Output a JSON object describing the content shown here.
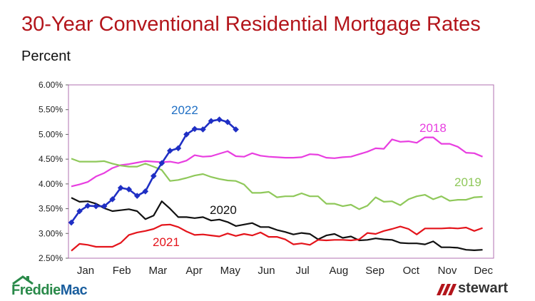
{
  "header": {
    "title": "30-Year Conventional Residential Mortgage Rates",
    "subtitle": "Percent"
  },
  "logos": {
    "left": "FreddieMac",
    "left_part1": "Freddie",
    "left_part2": "Mac",
    "right": "stewart"
  },
  "colors": {
    "title": "#b3151b",
    "y2018": "#e83ee0",
    "y2019": "#8fc85a",
    "y2020": "#111111",
    "y2021": "#e4141b",
    "y2022": "#1f2fc4",
    "label2022": "#1f6fc4",
    "frame": "#b070b0"
  },
  "chart_data": {
    "type": "line",
    "title": "30-Year Conventional Residential Mortgage Rates",
    "ylabel": "Percent",
    "ylim": [
      2.5,
      6.0
    ],
    "yticks": [
      "2.50%",
      "3.00%",
      "3.50%",
      "4.00%",
      "4.50%",
      "5.00%",
      "5.50%",
      "6.00%"
    ],
    "xlim": [
      0,
      51
    ],
    "xticks": [
      "Jan",
      "Feb",
      "Mar",
      "Apr",
      "May",
      "Jun",
      "Jul",
      "Aug",
      "Sep",
      "Oct",
      "Nov",
      "Dec"
    ],
    "legend": "inline labels",
    "series": [
      {
        "name": "2018",
        "color": "#e83ee0",
        "markers": false,
        "values": [
          3.95,
          3.99,
          4.04,
          4.15,
          4.22,
          4.32,
          4.38,
          4.4,
          4.43,
          4.46,
          4.45,
          4.44,
          4.45,
          4.42,
          4.47,
          4.58,
          4.55,
          4.56,
          4.61,
          4.66,
          4.56,
          4.55,
          4.62,
          4.57,
          4.55,
          4.54,
          4.53,
          4.53,
          4.54,
          4.6,
          4.59,
          4.53,
          4.52,
          4.54,
          4.55,
          4.6,
          4.65,
          4.72,
          4.71,
          4.9,
          4.85,
          4.86,
          4.83,
          4.94,
          4.94,
          4.81,
          4.81,
          4.75,
          4.63,
          4.62,
          4.55
        ]
      },
      {
        "name": "2019",
        "color": "#8fc85a",
        "markers": false,
        "values": [
          4.51,
          4.45,
          4.45,
          4.45,
          4.46,
          4.41,
          4.37,
          4.35,
          4.35,
          4.41,
          4.35,
          4.28,
          4.06,
          4.08,
          4.12,
          4.17,
          4.2,
          4.14,
          4.1,
          4.07,
          4.06,
          3.99,
          3.82,
          3.82,
          3.84,
          3.73,
          3.75,
          3.75,
          3.81,
          3.75,
          3.75,
          3.6,
          3.6,
          3.55,
          3.58,
          3.49,
          3.56,
          3.73,
          3.64,
          3.65,
          3.57,
          3.69,
          3.75,
          3.78,
          3.69,
          3.75,
          3.66,
          3.68,
          3.68,
          3.73,
          3.74
        ]
      },
      {
        "name": "2020",
        "color": "#111111",
        "markers": false,
        "values": [
          3.72,
          3.64,
          3.65,
          3.6,
          3.51,
          3.45,
          3.47,
          3.49,
          3.45,
          3.29,
          3.36,
          3.65,
          3.5,
          3.33,
          3.33,
          3.31,
          3.33,
          3.26,
          3.28,
          3.23,
          3.15,
          3.18,
          3.21,
          3.13,
          3.13,
          3.07,
          3.03,
          2.98,
          3.01,
          2.99,
          2.88,
          2.96,
          2.99,
          2.91,
          2.94,
          2.86,
          2.87,
          2.9,
          2.88,
          2.87,
          2.81,
          2.8,
          2.8,
          2.78,
          2.84,
          2.72,
          2.72,
          2.71,
          2.67,
          2.66,
          2.67
        ]
      },
      {
        "name": "2021",
        "color": "#e4141b",
        "markers": false,
        "values": [
          2.65,
          2.79,
          2.77,
          2.73,
          2.73,
          2.73,
          2.81,
          2.97,
          3.02,
          3.05,
          3.09,
          3.17,
          3.18,
          3.13,
          3.04,
          2.97,
          2.98,
          2.96,
          2.94,
          3.0,
          2.95,
          2.99,
          2.96,
          3.02,
          2.93,
          2.93,
          2.88,
          2.78,
          2.8,
          2.77,
          2.87,
          2.86,
          2.87,
          2.87,
          2.86,
          2.88,
          3.01,
          2.99,
          3.05,
          3.09,
          3.14,
          3.09,
          2.98,
          3.1,
          3.1,
          3.1,
          3.11,
          3.1,
          3.12,
          3.05,
          3.11
        ]
      },
      {
        "name": "2022",
        "color": "#1f2fc4",
        "markers": true,
        "values": [
          3.22,
          3.45,
          3.56,
          3.55,
          3.55,
          3.69,
          3.92,
          3.89,
          3.76,
          3.85,
          4.16,
          4.42,
          4.67,
          4.72,
          5.0,
          5.11,
          5.1,
          5.27,
          5.3,
          5.25,
          5.1
        ]
      }
    ]
  }
}
